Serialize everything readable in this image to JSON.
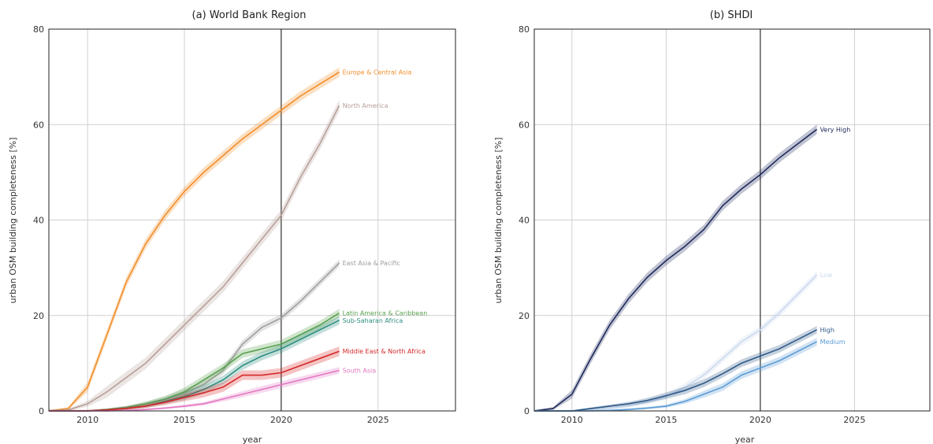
{
  "chart_data": [
    {
      "type": "line",
      "title": "(a) World Bank Region",
      "xlabel": "year",
      "ylabel": "urban OSM building completeness [%]",
      "xlim": [
        2008,
        2029
      ],
      "ylim": [
        0,
        80
      ],
      "xticks": [
        2010,
        2015,
        2020,
        2025
      ],
      "yticks": [
        0,
        20,
        40,
        60,
        80
      ],
      "vline_x": 2020,
      "grid": true,
      "x": [
        2008,
        2009,
        2010,
        2011,
        2012,
        2013,
        2014,
        2015,
        2016,
        2017,
        2018,
        2019,
        2020,
        2021,
        2022,
        2023
      ],
      "series": [
        {
          "name": "Europe & Central Asia",
          "color": "#f28e2b",
          "band": 1.0,
          "values": [
            0,
            0.5,
            5,
            16,
            27,
            35,
            41,
            46,
            50,
            53.5,
            57,
            60,
            63,
            66,
            68.5,
            71
          ]
        },
        {
          "name": "North America",
          "color": "#b8a09a",
          "band": 1.2,
          "values": [
            0,
            0.2,
            1.5,
            4,
            7,
            10,
            14,
            18,
            22,
            26,
            31,
            36,
            41,
            49,
            56,
            64
          ]
        },
        {
          "name": "East Asia & Pacific",
          "color": "#9e9e9e",
          "band": 0.8,
          "values": [
            0,
            0,
            0,
            0.3,
            0.8,
            1.5,
            2.5,
            3.8,
            5.5,
            8.5,
            14,
            17.5,
            19.5,
            23,
            27,
            31
          ]
        },
        {
          "name": "Latin America & Caribbean",
          "color": "#59a14f",
          "band": 0.9,
          "values": [
            0,
            0,
            0,
            0.3,
            0.7,
            1.5,
            2.5,
            4,
            6.5,
            9,
            12,
            13,
            14,
            16,
            18,
            20.5
          ]
        },
        {
          "name": "Sub-Saharan Africa",
          "color": "#2c8d7e",
          "band": 0.9,
          "values": [
            0,
            0,
            0,
            0.2,
            0.5,
            1,
            2,
            3,
            4.5,
            6.5,
            9.5,
            11.5,
            13,
            15,
            17,
            19
          ]
        },
        {
          "name": "Middle East & North Africa",
          "color": "#d62728",
          "band": 1.0,
          "values": [
            0,
            0,
            0,
            0.2,
            0.5,
            1,
            1.8,
            2.8,
            3.8,
            5,
            7.5,
            7.5,
            8,
            9.5,
            11,
            12.5
          ]
        },
        {
          "name": "South Asia",
          "color": "#e377c2",
          "band": 0.7,
          "values": [
            0,
            0,
            0,
            0,
            0.1,
            0.3,
            0.6,
            1,
            1.5,
            2.5,
            3.5,
            4.5,
            5.5,
            6.5,
            7.5,
            8.5
          ]
        }
      ]
    },
    {
      "type": "line",
      "title": "(b) SHDI",
      "xlabel": "year",
      "ylabel": "urban OSM building completeness [%]",
      "xlim": [
        2008,
        2029
      ],
      "ylim": [
        0,
        80
      ],
      "xticks": [
        2010,
        2015,
        2020,
        2025
      ],
      "yticks": [
        0,
        20,
        40,
        60,
        80
      ],
      "vline_x": 2020,
      "grid": true,
      "x": [
        2008,
        2009,
        2010,
        2011,
        2012,
        2013,
        2014,
        2015,
        2016,
        2017,
        2018,
        2019,
        2020,
        2021,
        2022,
        2023
      ],
      "series": [
        {
          "name": "Very High",
          "color": "#1f2a5c",
          "band": 1.0,
          "values": [
            0,
            0.5,
            3.5,
            11,
            18,
            23.5,
            28,
            31.5,
            34.5,
            38,
            43,
            46.5,
            49.5,
            53,
            56,
            59
          ]
        },
        {
          "name": "Low",
          "color": "#c9d9ec",
          "band": 0.8,
          "values": [
            0,
            0,
            0,
            0.2,
            0.5,
            1,
            1.8,
            3,
            5,
            7.5,
            11,
            14.5,
            17,
            20.5,
            24.5,
            28.5
          ]
        },
        {
          "name": "High",
          "color": "#2f5a8a",
          "band": 0.8,
          "values": [
            0,
            0,
            0,
            0.5,
            1,
            1.5,
            2.2,
            3.2,
            4.3,
            5.8,
            7.8,
            10,
            11.5,
            13,
            15,
            17
          ]
        },
        {
          "name": "Medium",
          "color": "#5b9bd5",
          "band": 0.8,
          "values": [
            0,
            0,
            0,
            0,
            0.1,
            0.3,
            0.6,
            1,
            2,
            3.5,
            5,
            7.5,
            9,
            10.5,
            12.5,
            14.5
          ]
        }
      ]
    }
  ]
}
